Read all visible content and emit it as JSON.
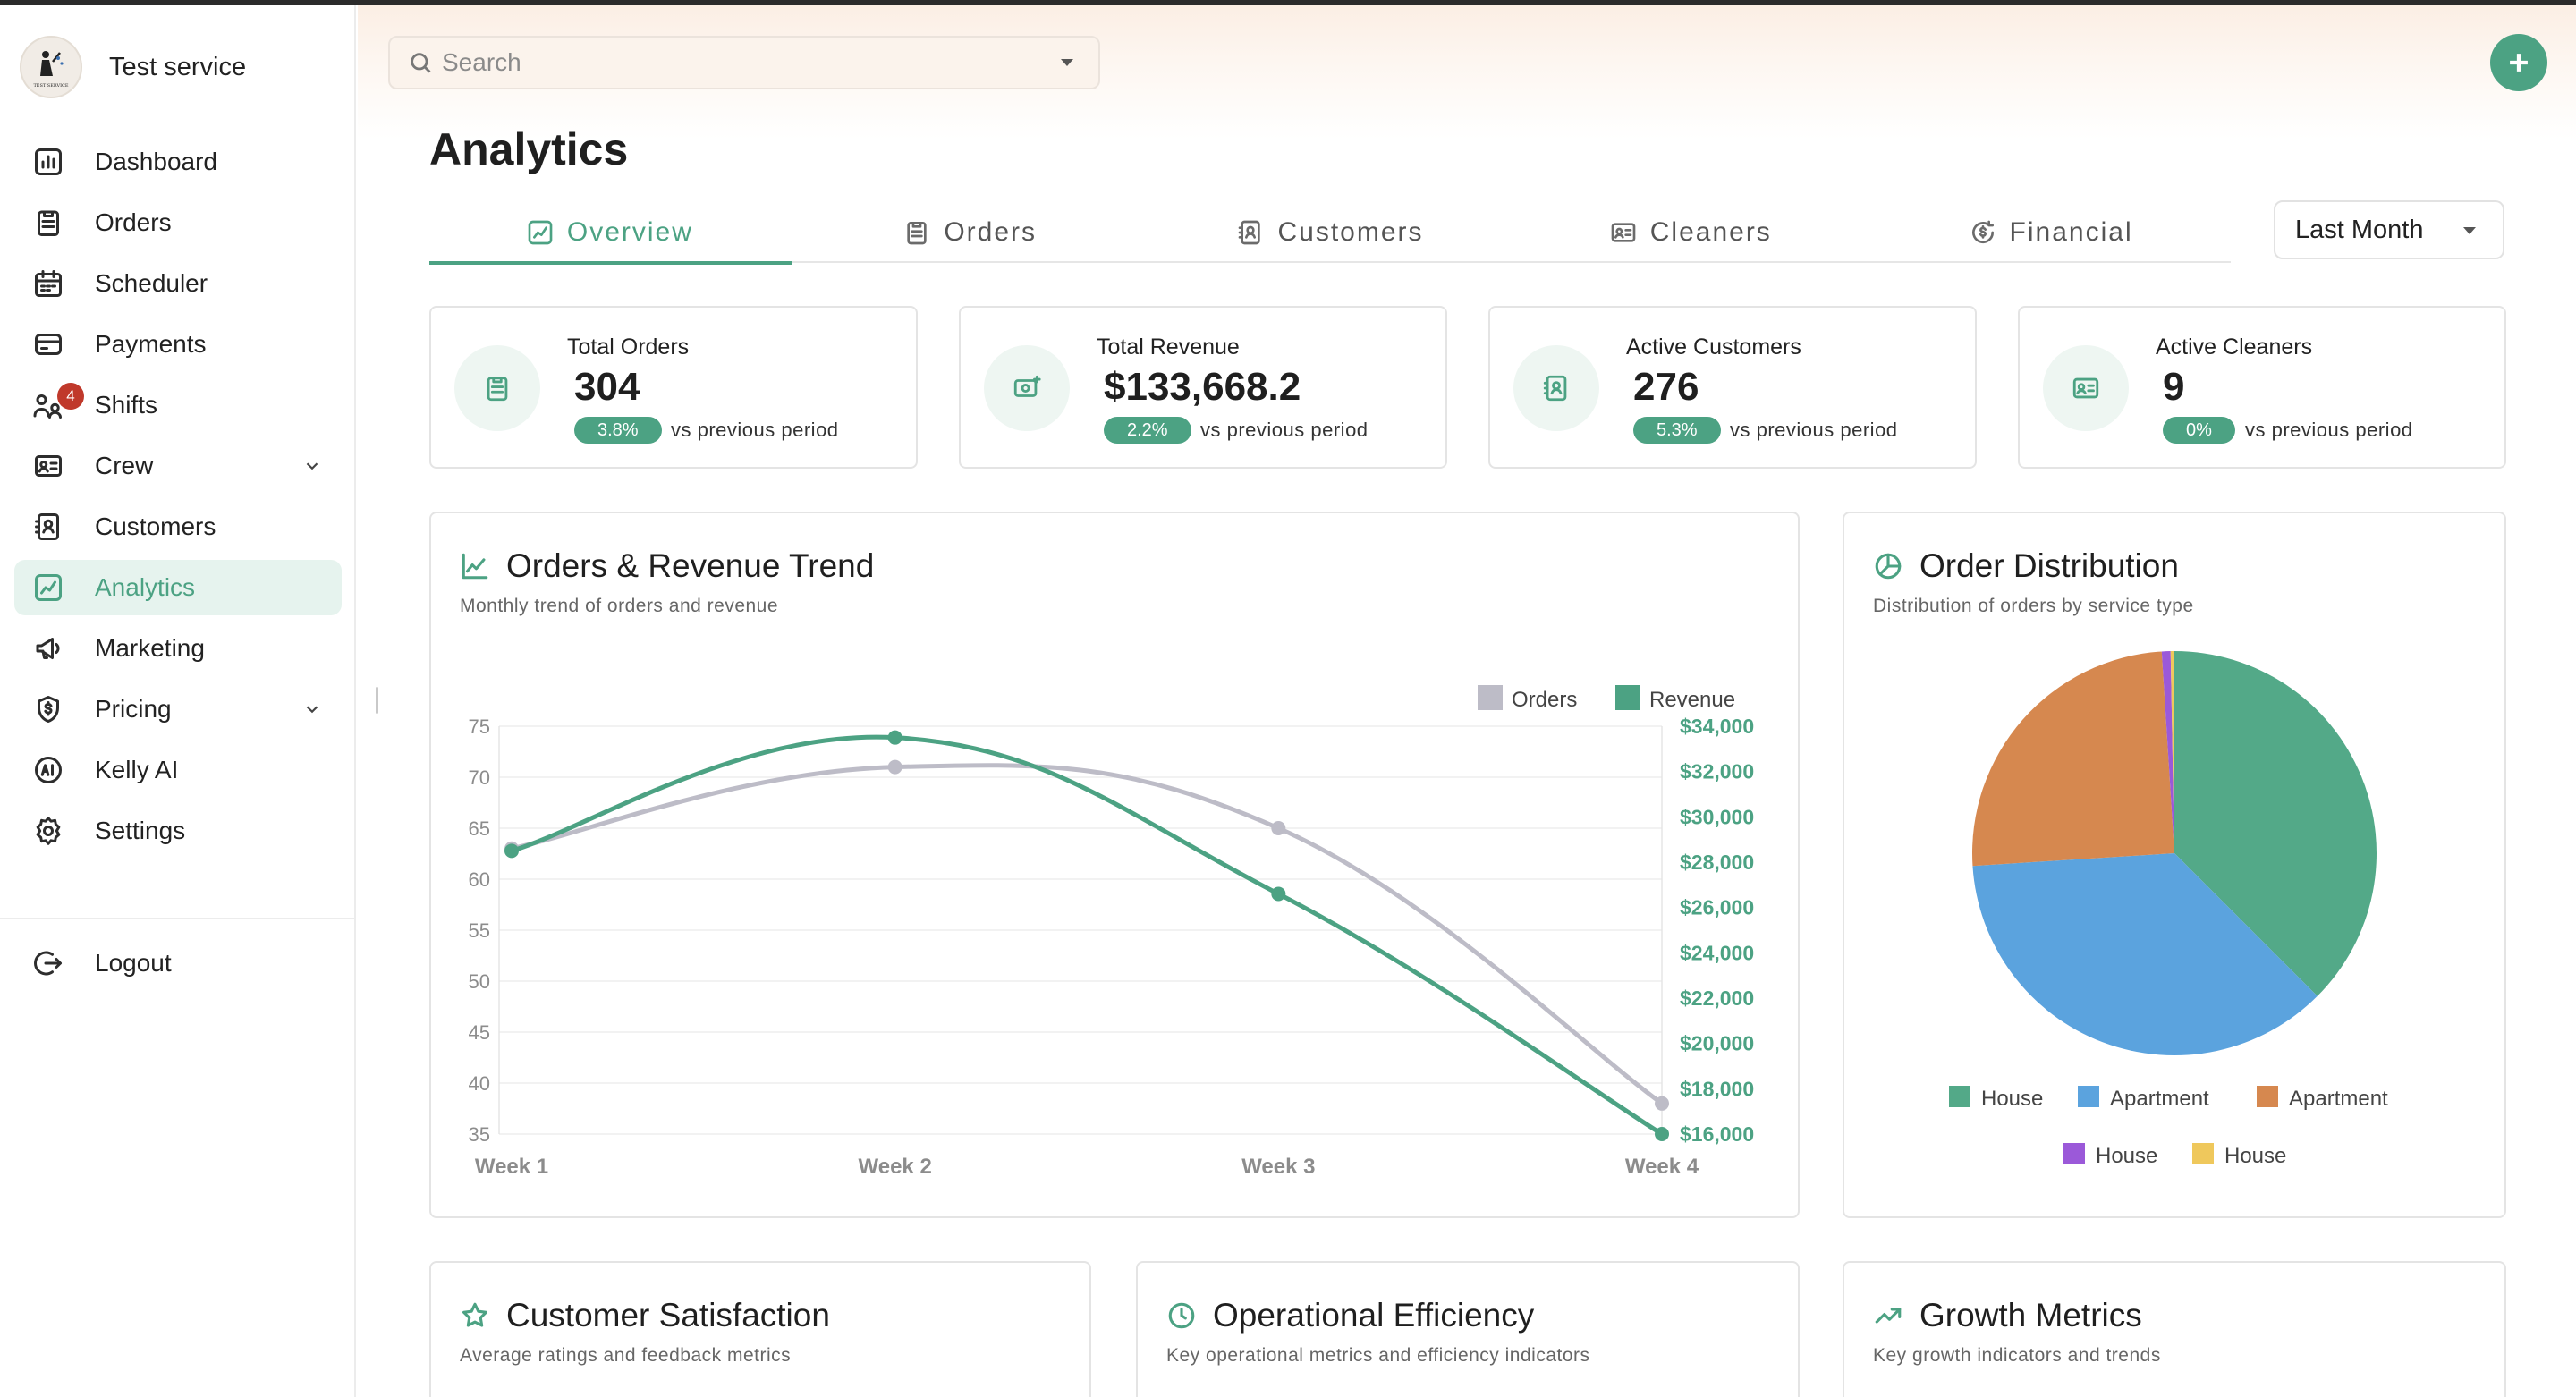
{
  "brand": {
    "name": "Test service",
    "logo_text": "TEST SERVICE"
  },
  "sidebar": {
    "items": [
      {
        "label": "Dashboard",
        "icon": "dashboard-icon"
      },
      {
        "label": "Orders",
        "icon": "clipboard-icon"
      },
      {
        "label": "Scheduler",
        "icon": "calendar-icon"
      },
      {
        "label": "Payments",
        "icon": "card-icon"
      },
      {
        "label": "Shifts",
        "icon": "shifts-icon",
        "badge": "4"
      },
      {
        "label": "Crew",
        "icon": "id-card-icon",
        "expandable": true
      },
      {
        "label": "Customers",
        "icon": "contact-icon"
      },
      {
        "label": "Analytics",
        "icon": "analytics-icon",
        "active": true
      },
      {
        "label": "Marketing",
        "icon": "megaphone-icon"
      },
      {
        "label": "Pricing",
        "icon": "dollar-shield-icon",
        "expandable": true
      },
      {
        "label": "Kelly AI",
        "icon": "ai-icon"
      },
      {
        "label": "Settings",
        "icon": "gear-icon"
      }
    ],
    "logout": "Logout"
  },
  "header": {
    "search_placeholder": "Search"
  },
  "page": {
    "title": "Analytics"
  },
  "tabs": [
    {
      "label": "Overview",
      "active": true
    },
    {
      "label": "Orders"
    },
    {
      "label": "Customers"
    },
    {
      "label": "Cleaners"
    },
    {
      "label": "Financial"
    }
  ],
  "period": {
    "selected": "Last Month"
  },
  "stats": [
    {
      "title": "Total Orders",
      "value": "304",
      "change": "3.8%",
      "note": "vs previous period"
    },
    {
      "title": "Total Revenue",
      "value": "$133,668.2",
      "change": "2.2%",
      "note": "vs previous period"
    },
    {
      "title": "Active Customers",
      "value": "276",
      "change": "5.3%",
      "note": "vs previous period"
    },
    {
      "title": "Active Cleaners",
      "value": "9",
      "change": "0%",
      "note": "vs previous period"
    }
  ],
  "panels": {
    "trend": {
      "title": "Orders & Revenue Trend",
      "subtitle": "Monthly trend of orders and revenue"
    },
    "distribution": {
      "title": "Order Distribution",
      "subtitle": "Distribution of orders by service type"
    },
    "satisfaction": {
      "title": "Customer Satisfaction",
      "subtitle": "Average ratings and feedback metrics"
    },
    "efficiency": {
      "title": "Operational Efficiency",
      "subtitle": "Key operational metrics and efficiency indicators"
    },
    "growth": {
      "title": "Growth Metrics",
      "subtitle": "Key growth indicators and trends"
    }
  },
  "colors": {
    "accent": "#4ca283",
    "orders_series": "#bdbcc7",
    "blue": "#5ba3de",
    "orange": "#d6884f",
    "purple": "#9b59d9",
    "yellow": "#efc85c"
  },
  "chart_data": [
    {
      "type": "line",
      "categories": [
        "Week 1",
        "Week 2",
        "Week 3",
        "Week 4"
      ],
      "series": [
        {
          "name": "Orders",
          "axis": "left",
          "values": [
            63,
            71,
            65,
            38
          ]
        },
        {
          "name": "Revenue",
          "axis": "right",
          "values": [
            28500,
            33500,
            26600,
            16000
          ]
        }
      ],
      "y_left": {
        "ticks": [
          35,
          40,
          45,
          50,
          55,
          60,
          65,
          70,
          75
        ],
        "range": [
          35,
          75
        ]
      },
      "y_right": {
        "ticks": [
          "$16,000",
          "$18,000",
          "$20,000",
          "$22,000",
          "$24,000",
          "$26,000",
          "$28,000",
          "$30,000",
          "$32,000",
          "$34,000"
        ],
        "range": [
          16000,
          34000
        ]
      },
      "legend": "top-right",
      "grid": true
    },
    {
      "type": "pie",
      "slices": [
        {
          "name": "House",
          "value": 37.5,
          "color": "#53a988"
        },
        {
          "name": "Apartment",
          "value": 36.5,
          "color": "#5ba3de"
        },
        {
          "name": "Apartment",
          "value": 25,
          "color": "#d6884f"
        },
        {
          "name": "House",
          "value": 0.7,
          "color": "#9b59d9"
        },
        {
          "name": "House",
          "value": 0.3,
          "color": "#efc85c"
        }
      ],
      "legend": "bottom"
    }
  ]
}
